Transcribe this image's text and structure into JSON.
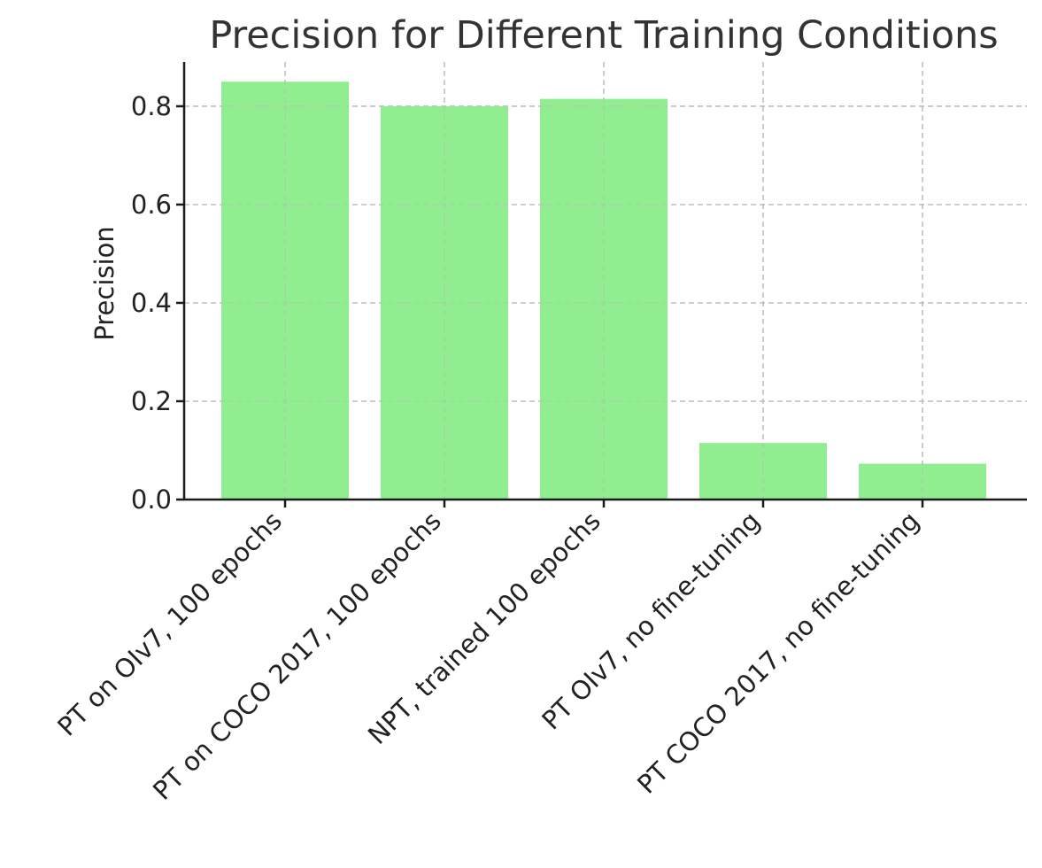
{
  "chart_data": {
    "type": "bar",
    "title": "Precision for Different Training Conditions",
    "xlabel": "",
    "ylabel": "Precision",
    "categories": [
      "PT on OIv7, 100 epochs",
      "PT on COCO 2017, 100 epochs",
      "NPT, trained 100 epochs",
      "PT OIv7, no fine-tuning",
      "PT COCO 2017, no fine-tuning"
    ],
    "values": [
      0.85,
      0.8,
      0.815,
      0.115,
      0.073
    ],
    "ylim": [
      0,
      0.89
    ],
    "yticks": [
      0.0,
      0.2,
      0.4,
      0.6,
      0.8
    ],
    "ytick_labels": [
      "0.0",
      "0.2",
      "0.4",
      "0.6",
      "0.8"
    ],
    "grid": true,
    "colors": {
      "bar": "#90ee90"
    }
  }
}
